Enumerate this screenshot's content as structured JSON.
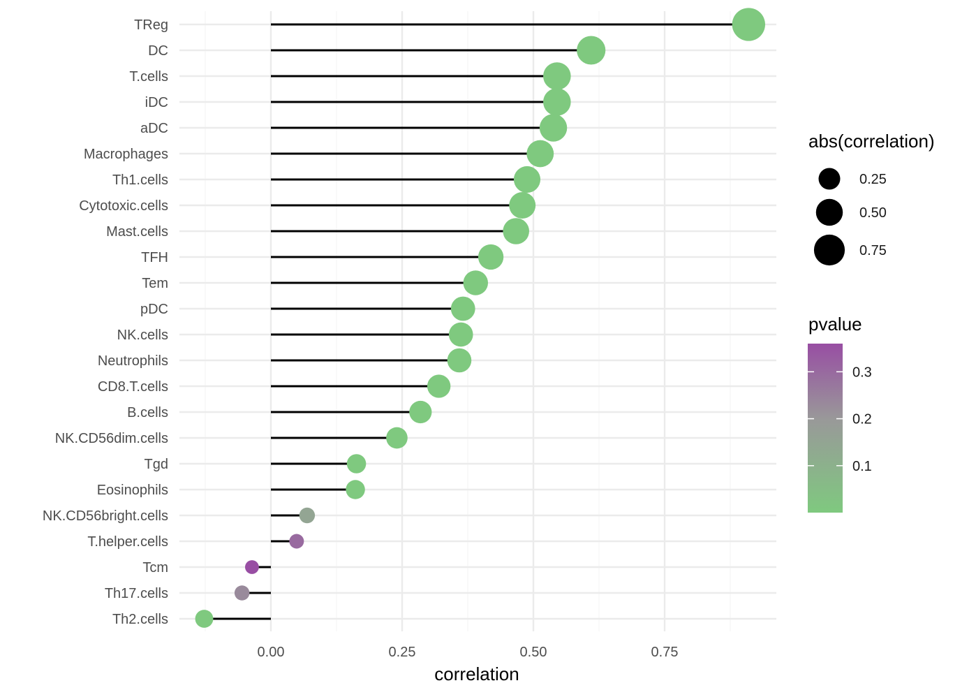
{
  "chart_data": {
    "type": "lollipop",
    "xlabel": "correlation",
    "ylabel": "",
    "xlim": [
      -0.14,
      0.96
    ],
    "x_ticks": [
      0.0,
      0.25,
      0.5,
      0.75
    ],
    "x_tick_labels": [
      "0.00",
      "0.25",
      "0.50",
      "0.75"
    ],
    "grid": true,
    "categories": [
      "TReg",
      "DC",
      "T.cells",
      "iDC",
      "aDC",
      "Macrophages",
      "Th1.cells",
      "Cytotoxic.cells",
      "Mast.cells",
      "TFH",
      "Tem",
      "pDC",
      "NK.cells",
      "Neutrophils",
      "CD8.T.cells",
      "B.cells",
      "NK.CD56dim.cells",
      "Tgd",
      "Eosinophils",
      "NK.CD56bright.cells",
      "T.helper.cells",
      "Tcm",
      "Th17.cells",
      "Th2.cells"
    ],
    "correlation": [
      0.91,
      0.61,
      0.545,
      0.545,
      0.538,
      0.513,
      0.488,
      0.479,
      0.467,
      0.419,
      0.39,
      0.366,
      0.362,
      0.359,
      0.32,
      0.285,
      0.24,
      0.163,
      0.161,
      0.069,
      0.049,
      -0.036,
      -0.055,
      -0.127
    ],
    "pvalue": [
      0.0,
      0.0,
      0.0,
      0.0,
      0.0,
      0.0,
      0.0,
      0.0,
      0.0,
      0.0,
      0.0,
      0.0,
      0.0,
      0.0,
      0.0,
      0.0,
      0.0,
      0.001,
      0.001,
      0.15,
      0.3,
      0.36,
      0.23,
      0.002
    ],
    "legend": {
      "size": {
        "title": "abs(correlation)",
        "breaks": [
          0.25,
          0.5,
          0.75
        ],
        "labels": [
          "0.25",
          "0.50",
          "0.75"
        ]
      },
      "color": {
        "title": "pvalue",
        "range": [
          0.0,
          0.36
        ],
        "breaks": [
          0.1,
          0.2,
          0.3
        ],
        "labels": [
          "0.1",
          "0.2",
          "0.3"
        ],
        "low_color": "#7fc97f",
        "mid_color": "#999999",
        "high_color": "#984ea3"
      },
      "placement": "right"
    },
    "colors": {
      "segment": "#000000",
      "grid_major": "#ebebeb",
      "grid_minor": "#f5f5f5"
    }
  }
}
